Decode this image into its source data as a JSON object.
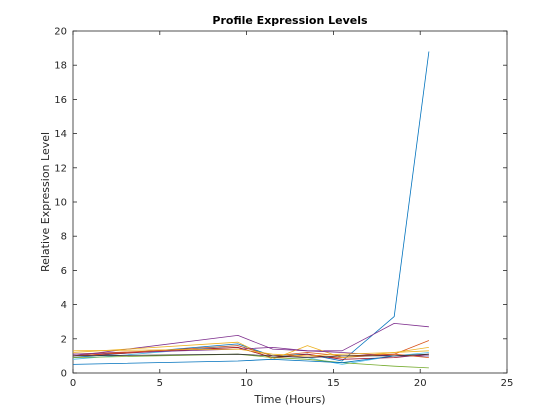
{
  "chart_data": {
    "type": "line",
    "title": "Profile Expression Levels",
    "xlabel": "Time (Hours)",
    "ylabel": "Relative Expression Level",
    "xlim": [
      0,
      25
    ],
    "ylim": [
      0,
      20
    ],
    "xticks": [
      0,
      5,
      10,
      15,
      20,
      25
    ],
    "yticks": [
      0,
      2,
      4,
      6,
      8,
      10,
      12,
      14,
      16,
      18,
      20
    ],
    "grid": false,
    "x": [
      0,
      9.5,
      11.5,
      13.5,
      15.5,
      18.5,
      20.5
    ],
    "series": [
      {
        "color": "#0072BD",
        "values": [
          0.9,
          1.7,
          1.0,
          1.1,
          0.7,
          3.3,
          18.8
        ]
      },
      {
        "color": "#7E2F8E",
        "values": [
          1.0,
          2.2,
          1.4,
          1.3,
          1.3,
          2.9,
          2.7
        ]
      },
      {
        "color": "#D95319",
        "values": [
          1.1,
          1.5,
          0.9,
          1.0,
          0.9,
          1.1,
          1.9
        ]
      },
      {
        "color": "#EDB120",
        "values": [
          1.2,
          1.8,
          0.8,
          1.6,
          0.9,
          1.2,
          1.5
        ]
      },
      {
        "color": "#4DBEEE",
        "values": [
          0.8,
          1.6,
          1.0,
          0.9,
          0.5,
          1.0,
          1.2
        ]
      },
      {
        "color": "#A2142F",
        "values": [
          1.0,
          1.5,
          0.9,
          1.1,
          0.8,
          0.9,
          1.1
        ]
      },
      {
        "color": "#77AC30",
        "values": [
          0.9,
          1.1,
          0.9,
          0.8,
          0.6,
          0.4,
          0.3
        ]
      },
      {
        "color": "#0072BD",
        "values": [
          0.5,
          0.7,
          0.8,
          0.7,
          0.6,
          1.0,
          1.0
        ]
      },
      {
        "color": "#7E2F8E",
        "values": [
          1.1,
          1.4,
          1.5,
          1.3,
          1.2,
          1.0,
          1.0
        ]
      },
      {
        "color": "#D95319",
        "values": [
          1.0,
          1.6,
          1.0,
          1.2,
          1.0,
          1.1,
          0.9
        ]
      },
      {
        "color": "#EDB120",
        "values": [
          1.3,
          1.4,
          1.1,
          1.0,
          1.1,
          1.2,
          1.3
        ]
      },
      {
        "color": "#333333",
        "values": [
          1.0,
          1.1,
          1.0,
          0.9,
          1.0,
          1.0,
          1.1
        ]
      }
    ]
  }
}
